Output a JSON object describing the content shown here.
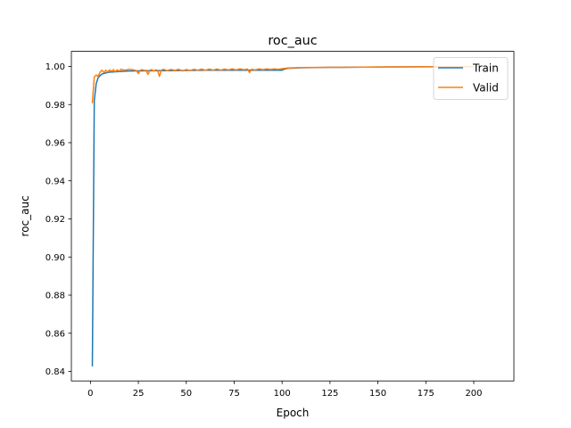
{
  "chart_data": {
    "type": "line",
    "title": "roc_auc",
    "xlabel": "Epoch",
    "ylabel": "roc_auc",
    "xlim": [
      -9.95,
      220.95
    ],
    "ylim": [
      0.835,
      1.0079
    ],
    "xticks": [
      0,
      25,
      50,
      75,
      100,
      125,
      150,
      175,
      200
    ],
    "xtick_labels": [
      "0",
      "25",
      "50",
      "75",
      "100",
      "125",
      "150",
      "175",
      "200"
    ],
    "yticks": [
      0.84,
      0.86,
      0.88,
      0.9,
      0.92,
      0.94,
      0.96,
      0.98,
      1.0
    ],
    "ytick_labels": [
      "0.84",
      "0.86",
      "0.88",
      "0.90",
      "0.92",
      "0.94",
      "0.96",
      "0.98",
      "1.00"
    ],
    "grid": false,
    "legend": "upper right",
    "series": [
      {
        "name": "Train",
        "color": "#1f77b4",
        "points": [
          [
            1,
            0.843
          ],
          [
            2,
            0.982
          ],
          [
            3,
            0.991
          ],
          [
            4,
            0.994
          ],
          [
            5,
            0.9952
          ],
          [
            6,
            0.996
          ],
          [
            8,
            0.9966
          ],
          [
            10,
            0.997
          ],
          [
            15,
            0.9973
          ],
          [
            20,
            0.9976
          ],
          [
            30,
            0.9977
          ],
          [
            40,
            0.9978
          ],
          [
            50,
            0.9979
          ],
          [
            60,
            0.998
          ],
          [
            70,
            0.998
          ],
          [
            80,
            0.998
          ],
          [
            90,
            0.998
          ],
          [
            100,
            0.998
          ],
          [
            101,
            0.9985
          ],
          [
            103,
            0.999
          ],
          [
            110,
            0.9993
          ],
          [
            125,
            0.9995
          ],
          [
            150,
            0.9997
          ],
          [
            175,
            0.9998
          ],
          [
            200,
            0.9999
          ]
        ]
      },
      {
        "name": "Valid",
        "color": "#ff7f0e",
        "points": [
          [
            1,
            0.981
          ],
          [
            2,
            0.9945
          ],
          [
            3,
            0.9955
          ],
          [
            4,
            0.9948
          ],
          [
            5,
            0.997
          ],
          [
            6,
            0.998
          ],
          [
            7,
            0.9968
          ],
          [
            8,
            0.998
          ],
          [
            9,
            0.997
          ],
          [
            10,
            0.9982
          ],
          [
            11,
            0.9975
          ],
          [
            12,
            0.9983
          ],
          [
            13,
            0.9972
          ],
          [
            14,
            0.9982
          ],
          [
            15,
            0.9975
          ],
          [
            16,
            0.9985
          ],
          [
            18,
            0.998
          ],
          [
            20,
            0.9985
          ],
          [
            22,
            0.9983
          ],
          [
            24,
            0.9978
          ],
          [
            25,
            0.9962
          ],
          [
            26,
            0.998
          ],
          [
            27,
            0.9983
          ],
          [
            28,
            0.9979
          ],
          [
            29,
            0.998
          ],
          [
            30,
            0.9958
          ],
          [
            31,
            0.998
          ],
          [
            32,
            0.9983
          ],
          [
            33,
            0.9975
          ],
          [
            34,
            0.9982
          ],
          [
            35,
            0.998
          ],
          [
            36,
            0.9948
          ],
          [
            37,
            0.998
          ],
          [
            38,
            0.9985
          ],
          [
            40,
            0.9978
          ],
          [
            42,
            0.9984
          ],
          [
            44,
            0.9979
          ],
          [
            46,
            0.9985
          ],
          [
            48,
            0.9976
          ],
          [
            50,
            0.9984
          ],
          [
            52,
            0.9978
          ],
          [
            54,
            0.9985
          ],
          [
            56,
            0.998
          ],
          [
            58,
            0.9986
          ],
          [
            60,
            0.998
          ],
          [
            62,
            0.9986
          ],
          [
            64,
            0.9981
          ],
          [
            66,
            0.9986
          ],
          [
            68,
            0.9981
          ],
          [
            70,
            0.9986
          ],
          [
            72,
            0.9982
          ],
          [
            74,
            0.9987
          ],
          [
            76,
            0.9982
          ],
          [
            78,
            0.9987
          ],
          [
            80,
            0.9983
          ],
          [
            82,
            0.9986
          ],
          [
            83,
            0.9968
          ],
          [
            84,
            0.9985
          ],
          [
            86,
            0.9982
          ],
          [
            88,
            0.9987
          ],
          [
            90,
            0.9983
          ],
          [
            92,
            0.9987
          ],
          [
            94,
            0.9984
          ],
          [
            96,
            0.9987
          ],
          [
            98,
            0.9985
          ],
          [
            100,
            0.9988
          ],
          [
            103,
            0.9992
          ],
          [
            110,
            0.9994
          ],
          [
            125,
            0.9995
          ],
          [
            150,
            0.9997
          ],
          [
            175,
            0.9998
          ],
          [
            200,
            0.9999
          ]
        ]
      }
    ]
  }
}
